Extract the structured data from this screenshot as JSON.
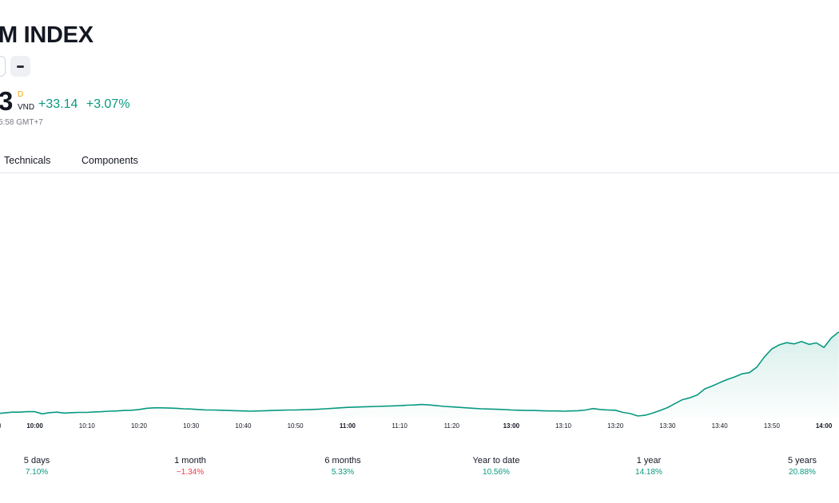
{
  "header": {
    "title": "M INDEX",
    "price_tail": "3",
    "session_mark": "D",
    "currency": "VND",
    "change_abs": "+33.14",
    "change_pct": "+3.07%",
    "timestamp": "5:58 GMT+7"
  },
  "tabs": [
    {
      "label": "Technicals"
    },
    {
      "label": "Components"
    }
  ],
  "colors": {
    "accent": "#089981",
    "negative": "#f23645",
    "text": "#131722"
  },
  "chart_data": {
    "type": "area",
    "x_ticks": [
      "10:00",
      "10:10",
      "10:20",
      "10:30",
      "10:40",
      "10:50",
      "11:00",
      "11:10",
      "11:20",
      "13:00",
      "13:10",
      "13:20",
      "13:30",
      "13:40",
      "13:50",
      "14:00"
    ],
    "bold_ticks": [
      "10:00",
      "11:00",
      "13:00",
      "14:00"
    ],
    "x_range": [
      "09:50",
      "14:03"
    ],
    "y_range": [
      0,
      100
    ],
    "grid": false,
    "series": [
      {
        "values": [
          [
            0,
            1.0
          ],
          [
            1,
            1.3
          ],
          [
            2,
            1.6
          ],
          [
            3,
            1.6
          ],
          [
            4,
            1.8
          ],
          [
            5,
            1.8
          ],
          [
            6,
            0.9
          ],
          [
            7,
            1.4
          ],
          [
            8,
            1.6
          ],
          [
            9,
            1.2
          ],
          [
            10,
            1.4
          ],
          [
            11,
            1.5
          ],
          [
            12,
            1.5
          ],
          [
            13,
            1.7
          ],
          [
            14,
            1.8
          ],
          [
            15,
            2.0
          ],
          [
            16,
            2.1
          ],
          [
            17,
            2.3
          ],
          [
            18,
            2.4
          ],
          [
            19,
            2.7
          ],
          [
            20,
            3.2
          ],
          [
            21,
            3.4
          ],
          [
            22,
            3.4
          ],
          [
            23,
            3.3
          ],
          [
            24,
            3.2
          ],
          [
            25,
            3.0
          ],
          [
            26,
            2.9
          ],
          [
            27,
            2.7
          ],
          [
            28,
            2.5
          ],
          [
            29,
            2.5
          ],
          [
            30,
            2.4
          ],
          [
            31,
            2.3
          ],
          [
            32,
            2.2
          ],
          [
            33,
            2.1
          ],
          [
            34,
            2.0
          ],
          [
            35,
            2.1
          ],
          [
            36,
            2.2
          ],
          [
            37,
            2.3
          ],
          [
            38,
            2.4
          ],
          [
            39,
            2.5
          ],
          [
            40,
            2.5
          ],
          [
            41,
            2.6
          ],
          [
            42,
            2.7
          ],
          [
            43,
            2.8
          ],
          [
            44,
            3.0
          ],
          [
            45,
            3.2
          ],
          [
            46,
            3.4
          ],
          [
            47,
            3.6
          ],
          [
            48,
            3.7
          ],
          [
            49,
            3.8
          ],
          [
            50,
            3.9
          ],
          [
            51,
            4.0
          ],
          [
            52,
            4.1
          ],
          [
            53,
            4.2
          ],
          [
            54,
            4.3
          ],
          [
            55,
            4.5
          ],
          [
            56,
            4.6
          ],
          [
            57,
            4.8
          ],
          [
            58,
            4.6
          ],
          [
            59,
            4.3
          ],
          [
            60,
            4.0
          ],
          [
            61,
            3.8
          ],
          [
            62,
            3.6
          ],
          [
            63,
            3.4
          ],
          [
            64,
            3.2
          ],
          [
            65,
            3.0
          ],
          [
            66,
            2.9
          ],
          [
            67,
            2.8
          ],
          [
            68,
            2.7
          ],
          [
            69,
            2.5
          ],
          [
            70,
            2.4
          ],
          [
            71,
            2.3
          ],
          [
            72,
            2.3
          ],
          [
            73,
            2.2
          ],
          [
            74,
            2.1
          ],
          [
            75,
            2.1
          ],
          [
            76,
            2.0
          ],
          [
            77,
            2.1
          ],
          [
            78,
            2.2
          ],
          [
            79,
            2.5
          ],
          [
            80,
            3.1
          ],
          [
            81,
            2.7
          ],
          [
            82,
            2.5
          ],
          [
            83,
            2.4
          ],
          [
            84,
            1.5
          ],
          [
            85,
            1.0
          ],
          [
            86,
            0.0
          ],
          [
            87,
            0.3
          ],
          [
            88,
            1.2
          ],
          [
            89,
            2.3
          ],
          [
            90,
            3.5
          ],
          [
            91,
            5.2
          ],
          [
            92,
            6.8
          ],
          [
            93,
            7.6
          ],
          [
            94,
            8.8
          ],
          [
            95,
            11.3
          ],
          [
            96,
            12.5
          ],
          [
            97,
            13.9
          ],
          [
            98,
            15.2
          ],
          [
            99,
            16.3
          ],
          [
            100,
            17.6
          ],
          [
            101,
            18.1
          ],
          [
            102,
            20.4
          ],
          [
            103,
            24.6
          ],
          [
            104,
            28.0
          ],
          [
            105,
            29.7
          ],
          [
            106,
            30.6
          ],
          [
            107,
            30.1
          ],
          [
            108,
            31.1
          ],
          [
            109,
            29.9
          ],
          [
            110,
            30.5
          ],
          [
            111,
            28.6
          ],
          [
            112,
            32.6
          ],
          [
            113,
            35.1
          ]
        ]
      }
    ]
  },
  "periods": [
    {
      "label": "5 days",
      "value": "7.10%",
      "sign": "pos"
    },
    {
      "label": "1 month",
      "value": "−1.34%",
      "sign": "neg"
    },
    {
      "label": "6 months",
      "value": "5.33%",
      "sign": "pos"
    },
    {
      "label": "Year to date",
      "value": "10.56%",
      "sign": "pos"
    },
    {
      "label": "1 year",
      "value": "14.18%",
      "sign": "pos"
    },
    {
      "label": "5 years",
      "value": "20.88%",
      "sign": "pos"
    }
  ]
}
